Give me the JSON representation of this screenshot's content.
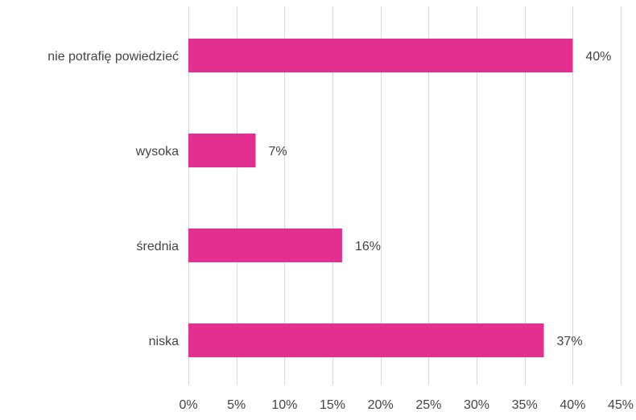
{
  "chart_data": {
    "type": "bar",
    "orientation": "horizontal",
    "categories": [
      "nie potrafię powiedzieć",
      "wysoka",
      "średnia",
      "niska"
    ],
    "values": [
      40,
      7,
      16,
      37
    ],
    "value_labels": [
      "40%",
      "7%",
      "16%",
      "37%"
    ],
    "xlim": [
      0,
      45
    ],
    "x_ticks": [
      0,
      5,
      10,
      15,
      20,
      25,
      30,
      35,
      40,
      45
    ],
    "x_tick_labels": [
      "0%",
      "5%",
      "10%",
      "15%",
      "20%",
      "25%",
      "30%",
      "35%",
      "40%",
      "45%"
    ],
    "title": "",
    "xlabel": "",
    "ylabel": "",
    "grid": "vertical",
    "legend": "none"
  },
  "colors": {
    "bar": "#E32F8F",
    "grid": "#D9D9D9",
    "text": "#444444"
  }
}
